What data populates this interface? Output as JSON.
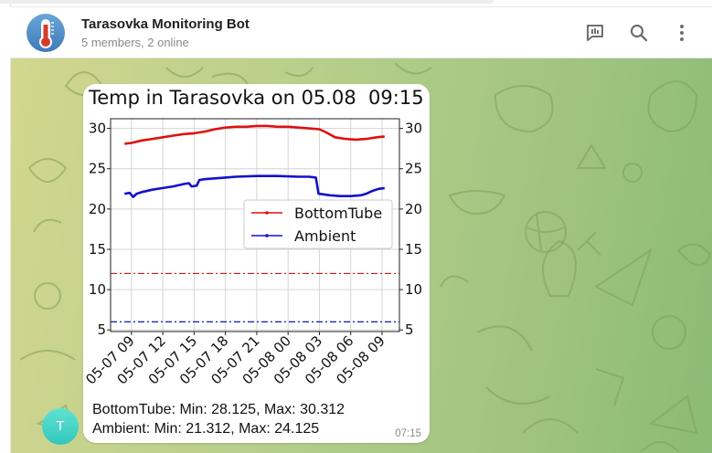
{
  "header": {
    "title": "Tarasovka Monitoring Bot",
    "subtitle": "5 members, 2 online",
    "icons": [
      "poll-icon",
      "search-icon",
      "more-vertical-icon"
    ]
  },
  "message": {
    "sender_avatar_letter": "T",
    "caption_line1": "BottomTube: Min: 28.125, Max: 30.312",
    "caption_line2": "Ambient: Min: 21.312, Max: 24.125",
    "time": "07:15"
  },
  "chart_data": {
    "type": "line",
    "title": "Temp in Tarasovka on 05.08  09:15",
    "xlabel": "",
    "ylabel": "",
    "ylim": [
      4.8,
      31.2
    ],
    "xlim": [
      "2024-05-07 07:00",
      "2024-05-08 10:40"
    ],
    "yticks": [
      5,
      10,
      15,
      20,
      25,
      30
    ],
    "xtick_labels": [
      "05-07 09",
      "05-07 12",
      "05-07 15",
      "05-07 18",
      "05-07 21",
      "05-08 00",
      "05-08 03",
      "05-08 06",
      "05-08 09"
    ],
    "grid": true,
    "legend_position": "center-right",
    "series": [
      {
        "name": "BottomTube",
        "color": "#dd1111",
        "points": [
          [
            "2024-05-07 08:20",
            28.1
          ],
          [
            "2024-05-07 09:00",
            28.2
          ],
          [
            "2024-05-07 10:00",
            28.5
          ],
          [
            "2024-05-07 11:00",
            28.7
          ],
          [
            "2024-05-07 12:00",
            28.9
          ],
          [
            "2024-05-07 13:00",
            29.1
          ],
          [
            "2024-05-07 14:00",
            29.3
          ],
          [
            "2024-05-07 15:00",
            29.4
          ],
          [
            "2024-05-07 16:00",
            29.6
          ],
          [
            "2024-05-07 17:00",
            29.9
          ],
          [
            "2024-05-07 18:00",
            30.1
          ],
          [
            "2024-05-07 19:00",
            30.2
          ],
          [
            "2024-05-07 20:00",
            30.2
          ],
          [
            "2024-05-07 21:00",
            30.3
          ],
          [
            "2024-05-07 22:00",
            30.3
          ],
          [
            "2024-05-07 23:00",
            30.2
          ],
          [
            "2024-05-08 00:00",
            30.2
          ],
          [
            "2024-05-08 01:00",
            30.1
          ],
          [
            "2024-05-08 02:00",
            30.0
          ],
          [
            "2024-05-08 03:00",
            29.9
          ],
          [
            "2024-05-08 03:40",
            29.5
          ],
          [
            "2024-05-08 04:30",
            28.9
          ],
          [
            "2024-05-08 05:30",
            28.7
          ],
          [
            "2024-05-08 06:30",
            28.6
          ],
          [
            "2024-05-08 07:30",
            28.7
          ],
          [
            "2024-05-08 08:30",
            28.9
          ],
          [
            "2024-05-08 09:15",
            29.0
          ]
        ]
      },
      {
        "name": "Ambient",
        "color": "#1111cc",
        "points": [
          [
            "2024-05-07 08:20",
            21.9
          ],
          [
            "2024-05-07 08:50",
            22.0
          ],
          [
            "2024-05-07 09:10",
            21.5
          ],
          [
            "2024-05-07 09:30",
            21.9
          ],
          [
            "2024-05-07 10:00",
            22.1
          ],
          [
            "2024-05-07 11:00",
            22.4
          ],
          [
            "2024-05-07 12:00",
            22.6
          ],
          [
            "2024-05-07 13:00",
            22.8
          ],
          [
            "2024-05-07 14:00",
            23.1
          ],
          [
            "2024-05-07 14:30",
            23.2
          ],
          [
            "2024-05-07 14:45",
            22.8
          ],
          [
            "2024-05-07 15:15",
            22.9
          ],
          [
            "2024-05-07 15:30",
            23.6
          ],
          [
            "2024-05-07 16:00",
            23.7
          ],
          [
            "2024-05-07 17:00",
            23.8
          ],
          [
            "2024-05-07 18:00",
            23.9
          ],
          [
            "2024-05-07 19:00",
            24.0
          ],
          [
            "2024-05-07 21:00",
            24.1
          ],
          [
            "2024-05-07 23:00",
            24.1
          ],
          [
            "2024-05-08 01:00",
            24.0
          ],
          [
            "2024-05-08 02:00",
            24.0
          ],
          [
            "2024-05-08 02:40",
            23.9
          ],
          [
            "2024-05-08 02:55",
            21.9
          ],
          [
            "2024-05-08 04:00",
            21.7
          ],
          [
            "2024-05-08 05:00",
            21.6
          ],
          [
            "2024-05-08 06:00",
            21.6
          ],
          [
            "2024-05-08 07:00",
            21.7
          ],
          [
            "2024-05-08 07:30",
            21.9
          ],
          [
            "2024-05-08 08:00",
            22.2
          ],
          [
            "2024-05-08 08:40",
            22.5
          ],
          [
            "2024-05-08 09:15",
            22.6
          ]
        ]
      }
    ],
    "reference_lines": [
      {
        "y": 12,
        "color": "#dd1111",
        "style": "dash-dot"
      },
      {
        "y": 6,
        "color": "#1111cc",
        "style": "dash-dot"
      }
    ]
  }
}
